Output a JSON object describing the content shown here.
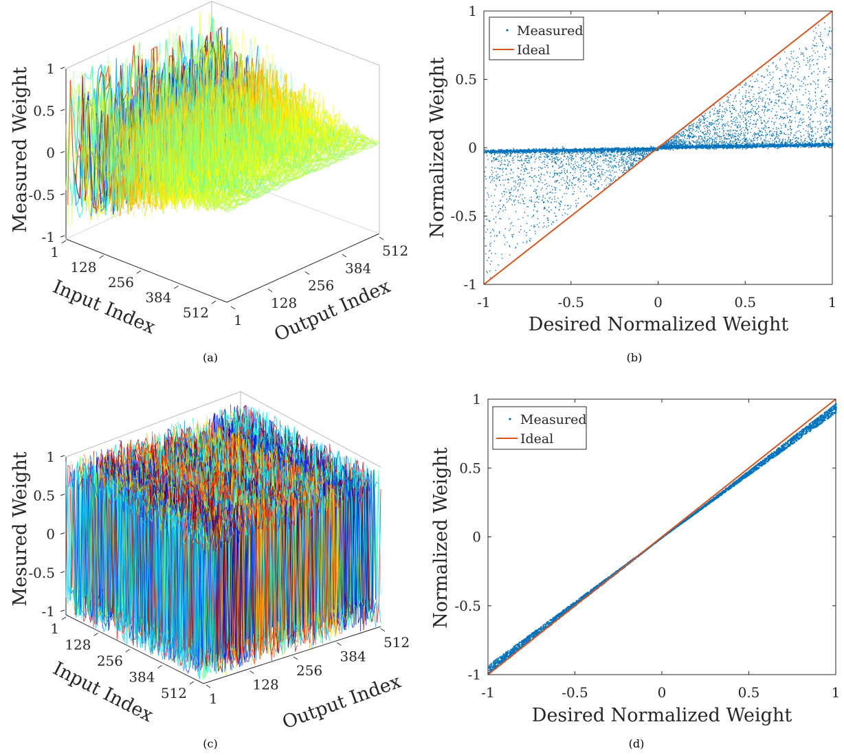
{
  "panels": {
    "a": {
      "caption": "(a)",
      "zlabel": "Measured Weight",
      "xlabel": "Input Index",
      "ylabel": "Output Index",
      "zticks": [
        "1",
        "0.5",
        "0",
        "-0.5",
        "-1"
      ],
      "input_ticks": [
        "1",
        "128",
        "256",
        "384",
        "512"
      ],
      "output_ticks": [
        "1",
        "128",
        "256",
        "384",
        "512"
      ]
    },
    "c": {
      "caption": "(c)",
      "zlabel": "Mesured Weight",
      "xlabel": "Input Index",
      "ylabel": "Output Index",
      "zticks": [
        "1",
        "0.5",
        "0",
        "-0.5",
        "-1"
      ],
      "input_ticks": [
        "1",
        "128",
        "256",
        "384",
        "512"
      ],
      "output_ticks": [
        "1",
        "128",
        "256",
        "384",
        "512"
      ]
    },
    "b": {
      "caption": "(b)",
      "legend": {
        "measured": "Measured",
        "ideal": "Ideal"
      },
      "xticks": [
        "-1",
        "-0.5",
        "0",
        "0.5",
        "1"
      ],
      "yticks": [
        "1",
        "0.5",
        "0",
        "-0.5",
        "-1"
      ]
    },
    "d": {
      "caption": "(d)",
      "legend": {
        "measured": "Measured",
        "ideal": "Ideal"
      },
      "xticks": [
        "-1",
        "-0.5",
        "0",
        "0.5",
        "1"
      ],
      "yticks": [
        "1",
        "0.5",
        "0",
        "-0.5",
        "-1"
      ]
    }
  },
  "colors": {
    "measured": "#0072BD",
    "ideal": "#D95319"
  },
  "chart_data": [
    {
      "id": "a",
      "type": "surface3d",
      "xlabel": "Input Index",
      "ylabel": "Output Index",
      "zlabel": "Measured Weight",
      "xlim": [
        1,
        512
      ],
      "ylim": [
        1,
        512
      ],
      "zlim": [
        -1,
        1
      ],
      "description_of_shape": "amplitude ~0.9 at input index 1 decaying to ~0 at input index 512",
      "amplitude_start": 0.9,
      "amplitude_end": 0.0
    },
    {
      "id": "b",
      "type": "scatter",
      "xlabel": "Desired Normalized Weight",
      "ylabel": "Normalized Weight",
      "xlim": [
        -1,
        1
      ],
      "ylim": [
        -1,
        1
      ],
      "series": [
        {
          "name": "Measured",
          "type": "scatter",
          "lower_band": [
            [
              -1,
              -0.02
            ],
            [
              0,
              0
            ],
            [
              1,
              0.02
            ]
          ],
          "upper_band": [
            [
              -1,
              -0.02
            ],
            [
              0,
              0
            ],
            [
              1,
              1
            ]
          ]
        },
        {
          "name": "Ideal",
          "type": "line",
          "x": [
            -1,
            1
          ],
          "y": [
            -1,
            1
          ]
        }
      ],
      "legend": "top-left"
    },
    {
      "id": "c",
      "type": "surface3d",
      "xlabel": "Input Index",
      "ylabel": "Output Index",
      "zlabel": "Mesured Weight",
      "xlim": [
        1,
        512
      ],
      "ylim": [
        1,
        512
      ],
      "zlim": [
        -1,
        1
      ],
      "amplitude_start": 1.0,
      "amplitude_end": 1.0
    },
    {
      "id": "d",
      "type": "scatter",
      "xlabel": "Desired Normalized Weight",
      "ylabel": "Normalized Weight",
      "xlim": [
        -1,
        1
      ],
      "ylim": [
        -1,
        1
      ],
      "series": [
        {
          "name": "Measured",
          "type": "scatter",
          "band": [
            [
              -1,
              -0.96,
              -0.9
            ],
            [
              0,
              0,
              0
            ],
            [
              1,
              0.92,
              0.98
            ]
          ]
        },
        {
          "name": "Ideal",
          "type": "line",
          "x": [
            -1,
            1
          ],
          "y": [
            -1,
            1
          ]
        }
      ],
      "legend": "top-left"
    }
  ]
}
